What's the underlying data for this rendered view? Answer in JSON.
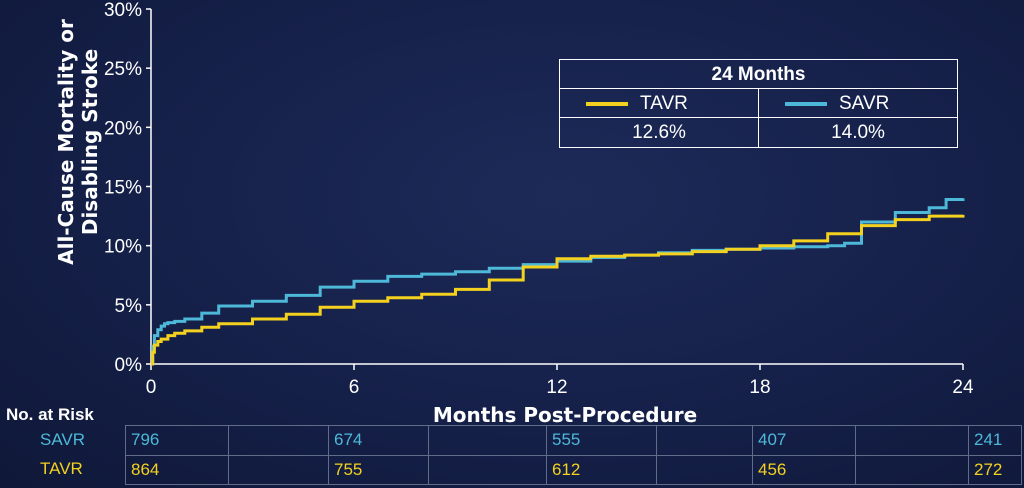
{
  "chart_data": {
    "type": "line",
    "ylabel": "All-Cause Mortality or Disabling Stroke",
    "xlabel": "Months Post-Procedure",
    "xlim": [
      0,
      24
    ],
    "ylim": [
      0,
      30
    ],
    "x_ticks": [
      "0",
      "6",
      "12",
      "18",
      "24"
    ],
    "y_ticks": [
      "0%",
      "5%",
      "10%",
      "15%",
      "20%",
      "25%",
      "30%"
    ],
    "legend": {
      "title": "24 Months",
      "entries": [
        {
          "name": "TAVR",
          "value": "12.6%",
          "color": "#f3d11e"
        },
        {
          "name": "SAVR",
          "value": "14.0%",
          "color": "#4db8d8"
        }
      ]
    },
    "series": [
      {
        "name": "SAVR",
        "color": "#4db8d8",
        "x": [
          0,
          0.05,
          0.1,
          0.2,
          0.3,
          0.4,
          0.5,
          0.7,
          1,
          1.5,
          2,
          3,
          4,
          5,
          6,
          7,
          8,
          9,
          10,
          11,
          12,
          13,
          14,
          15,
          16,
          17,
          18,
          19,
          20,
          20.5,
          21,
          22,
          23,
          23.5,
          24
        ],
        "y": [
          0,
          1.5,
          2.4,
          2.9,
          3.2,
          3.4,
          3.5,
          3.6,
          3.8,
          4.3,
          4.9,
          5.3,
          5.8,
          6.5,
          7.0,
          7.4,
          7.6,
          7.8,
          8.1,
          8.4,
          8.7,
          9.0,
          9.2,
          9.4,
          9.6,
          9.7,
          9.8,
          9.9,
          10.0,
          10.2,
          12.0,
          12.8,
          13.2,
          13.9,
          14.0
        ]
      },
      {
        "name": "TAVR",
        "color": "#f3d11e",
        "x": [
          0,
          0.05,
          0.1,
          0.2,
          0.3,
          0.5,
          0.7,
          1,
          1.5,
          2,
          3,
          4,
          5,
          6,
          7,
          8,
          9,
          10,
          11,
          12,
          13,
          14,
          15,
          16,
          17,
          18,
          19,
          20,
          21,
          22,
          23,
          24
        ],
        "y": [
          0,
          1.0,
          1.6,
          1.9,
          2.1,
          2.4,
          2.6,
          2.8,
          3.1,
          3.4,
          3.8,
          4.2,
          4.8,
          5.3,
          5.6,
          5.9,
          6.3,
          7.1,
          8.2,
          8.9,
          9.1,
          9.2,
          9.3,
          9.5,
          9.7,
          10.0,
          10.4,
          11.0,
          11.7,
          12.2,
          12.5,
          12.6
        ]
      }
    ]
  },
  "risk_table": {
    "title": "No. at Risk",
    "rows": [
      {
        "label": "SAVR",
        "values": [
          "796",
          "",
          "674",
          "",
          "555",
          "",
          "407",
          "",
          "241"
        ]
      },
      {
        "label": "TAVR",
        "values": [
          "864",
          "",
          "755",
          "",
          "612",
          "",
          "456",
          "",
          "272"
        ]
      }
    ]
  }
}
